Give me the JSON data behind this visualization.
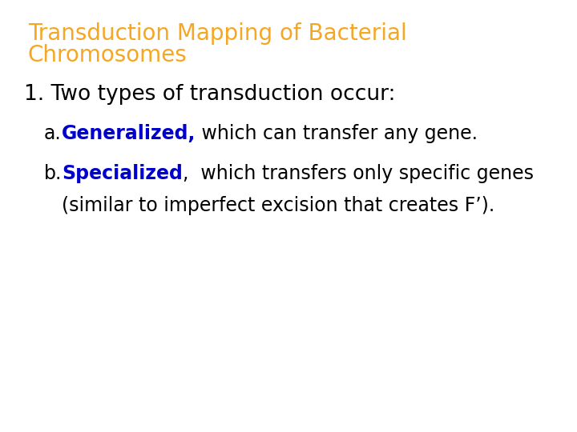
{
  "background_color": "#ffffff",
  "title_line1": "Transduction Mapping of Bacterial",
  "title_line2": "Chromosomes",
  "title_color": "#f5a623",
  "title_fontsize": 20,
  "point1_text": "1. Two types of transduction occur:",
  "point1_color": "#000000",
  "point1_fontsize": 19,
  "sub_a_prefix": "a.",
  "sub_a_bold": "Generalized,",
  "sub_a_rest": " which can transfer any gene.",
  "sub_a_color": "#0000cc",
  "sub_b_prefix": "b.",
  "sub_b_bold": "Specialized",
  "sub_b_rest": ",  which transfers only specific genes",
  "sub_b_line2": "(similar to imperfect excision that creates F’).",
  "sub_b_color": "#0000cc",
  "body_fontsize": 17,
  "black": "#000000"
}
